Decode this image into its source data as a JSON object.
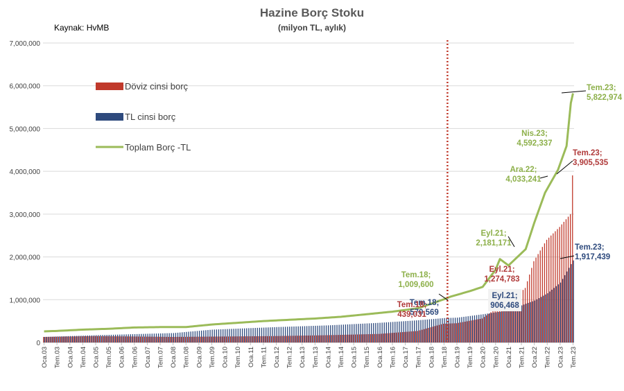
{
  "chart_data": {
    "type": "bar",
    "title": "Hazine Borç Stoku",
    "subtitle": "(milyon TL, aylık)",
    "source": "Kaynak: HvMB",
    "ylim": [
      0,
      7000000
    ],
    "yticks": [
      {
        "value": 0,
        "label": "0"
      },
      {
        "value": 1000000,
        "label": "1,000,000"
      },
      {
        "value": 2000000,
        "label": "2,000,000"
      },
      {
        "value": 3000000,
        "label": "3,000,000"
      },
      {
        "value": 4000000,
        "label": "4,000,000"
      },
      {
        "value": 5000000,
        "label": "5,000,000"
      },
      {
        "value": 6000000,
        "label": "6,000,000"
      },
      {
        "value": 7000000,
        "label": "7,000,000"
      }
    ],
    "x_start": "2003-01",
    "x_end": "2023-07",
    "xticks": [
      "Oca.03",
      "Tem.03",
      "Oca.04",
      "Tem.04",
      "Oca.05",
      "Tem.05",
      "Oca.06",
      "Tem.06",
      "Oca.07",
      "Tem.07",
      "Oca.08",
      "Tem.08",
      "Oca.09",
      "Tem.09",
      "Oca.10",
      "Tem.10",
      "Oca.11",
      "Tem.11",
      "Oca.12",
      "Tem.12",
      "Oca.13",
      "Tem.13",
      "Oca.14",
      "Tem.14",
      "Oca.15",
      "Tem.15",
      "Oca.16",
      "Tem.16",
      "Oca.17",
      "Tem.17",
      "Oca.18",
      "Tem.18",
      "Oca.19",
      "Tem.19",
      "Oca.20",
      "Tem.20",
      "Oca.21",
      "Tem.21",
      "Oca.22",
      "Tem.22",
      "Oca.23",
      "Tem.23"
    ],
    "vline_at": "2018-07",
    "colors": {
      "fx": "#C0392B",
      "tl": "#2E4A7D",
      "total": "#9BBB59",
      "vline": "#C0392B",
      "fx_label": "#B03A3A",
      "total_label": "#8DB04A",
      "tl_label": "#2E4A7D"
    },
    "series": [
      {
        "name": "Döviz cinsi borç",
        "key": "fx",
        "points": [
          [
            "2003-01",
            130000
          ],
          [
            "2005-01",
            150000
          ],
          [
            "2008-01",
            130000
          ],
          [
            "2010-01",
            140000
          ],
          [
            "2012-01",
            150000
          ],
          [
            "2014-01",
            170000
          ],
          [
            "2016-01",
            200000
          ],
          [
            "2017-07",
            270000
          ],
          [
            "2018-07",
            439031
          ],
          [
            "2019-01",
            450000
          ],
          [
            "2020-01",
            560000
          ],
          [
            "2020-07",
            780000
          ],
          [
            "2021-01",
            900000
          ],
          [
            "2021-09",
            1274783
          ],
          [
            "2022-01",
            1900000
          ],
          [
            "2022-07",
            2400000
          ],
          [
            "2023-01",
            2700000
          ],
          [
            "2023-06",
            3000000
          ],
          [
            "2023-07",
            3905535
          ]
        ]
      },
      {
        "name": "TL cinsi borç",
        "key": "tl",
        "points": [
          [
            "2003-01",
            130000
          ],
          [
            "2005-01",
            170000
          ],
          [
            "2008-01",
            220000
          ],
          [
            "2009-07",
            300000
          ],
          [
            "2012-01",
            360000
          ],
          [
            "2014-01",
            400000
          ],
          [
            "2016-01",
            460000
          ],
          [
            "2017-07",
            520000
          ],
          [
            "2018-07",
            570569
          ],
          [
            "2019-01",
            580000
          ],
          [
            "2020-01",
            660000
          ],
          [
            "2021-01",
            750000
          ],
          [
            "2021-09",
            906468
          ],
          [
            "2022-01",
            980000
          ],
          [
            "2022-07",
            1150000
          ],
          [
            "2023-01",
            1400000
          ],
          [
            "2023-07",
            1917439
          ]
        ]
      },
      {
        "name": "Toplam Borç -TL",
        "key": "total",
        "points": [
          [
            "2003-01",
            260000
          ],
          [
            "2003-07",
            270000
          ],
          [
            "2004-07",
            300000
          ],
          [
            "2005-07",
            320000
          ],
          [
            "2006-07",
            350000
          ],
          [
            "2007-07",
            360000
          ],
          [
            "2008-07",
            360000
          ],
          [
            "2009-07",
            420000
          ],
          [
            "2010-07",
            460000
          ],
          [
            "2011-07",
            500000
          ],
          [
            "2012-07",
            530000
          ],
          [
            "2013-07",
            560000
          ],
          [
            "2014-07",
            600000
          ],
          [
            "2015-07",
            660000
          ],
          [
            "2016-07",
            720000
          ],
          [
            "2017-07",
            800000
          ],
          [
            "2018-07",
            1009600
          ],
          [
            "2018-10",
            1070000
          ],
          [
            "2019-07",
            1200000
          ],
          [
            "2020-01",
            1300000
          ],
          [
            "2020-07",
            1700000
          ],
          [
            "2020-09",
            1950000
          ],
          [
            "2021-01",
            1800000
          ],
          [
            "2021-09",
            2181171
          ],
          [
            "2022-01",
            2800000
          ],
          [
            "2022-06",
            3500000
          ],
          [
            "2022-12",
            4033241
          ],
          [
            "2023-04",
            4592337
          ],
          [
            "2023-06",
            5600000
          ],
          [
            "2023-07",
            5822974
          ]
        ]
      }
    ],
    "legend": [
      {
        "key": "fx",
        "label": "Döviz cinsi borç"
      },
      {
        "key": "tl",
        "label": "TL cinsi borç"
      },
      {
        "key": "total",
        "label": "Toplam Borç -TL"
      }
    ],
    "annotations": [
      {
        "series": "total",
        "name": "Tem.18",
        "value": "1,009,600",
        "at": "2018-07"
      },
      {
        "series": "tl",
        "name": "Tem.18",
        "value": "570,569",
        "at": "2018-07"
      },
      {
        "series": "fx",
        "name": "Tem.18",
        "value": "439,031",
        "at": "2018-07"
      },
      {
        "series": "total",
        "name": "Eyl.21",
        "value": "2,181,171",
        "at": "2021-09"
      },
      {
        "series": "fx",
        "name": "Eyl.21",
        "value": "1,274,783",
        "at": "2021-09"
      },
      {
        "series": "tl",
        "name": "Eyl.21",
        "value": "906,468",
        "at": "2021-09"
      },
      {
        "series": "total",
        "name": "Ara.22",
        "value": "4,033,241",
        "at": "2022-12"
      },
      {
        "series": "total",
        "name": "Nis.23",
        "value": "4,592,337",
        "at": "2023-04"
      },
      {
        "series": "total",
        "name": "Tem.23",
        "value": "5,822,974",
        "at": "2023-07"
      },
      {
        "series": "fx",
        "name": "Tem.23",
        "value": "3,905,535",
        "at": "2023-07"
      },
      {
        "series": "tl",
        "name": "Tem.23",
        "value": "1,917,439",
        "at": "2023-07"
      }
    ]
  }
}
